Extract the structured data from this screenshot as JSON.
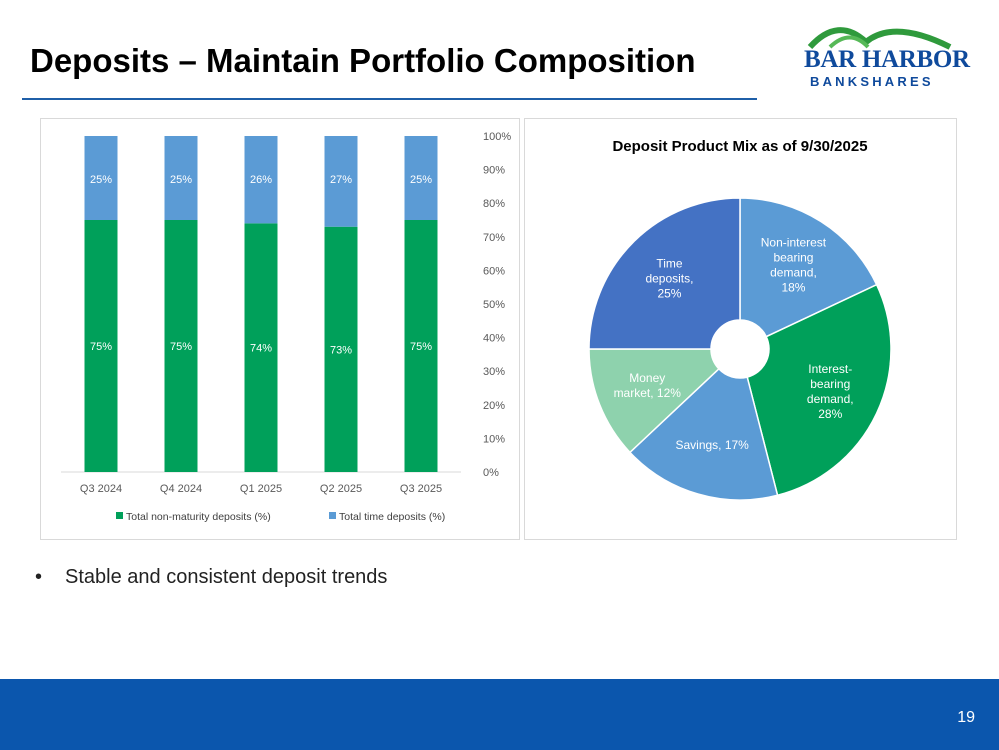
{
  "title": "Deposits – Maintain Portfolio Composition",
  "logo": {
    "line1": "BAR HARBOR",
    "line2": "BANKSHARES"
  },
  "bullet": "Stable and consistent deposit trends",
  "page_number": "19",
  "colors": {
    "green": "#00a05a",
    "blue": "#5b9bd5",
    "darkblue": "#4472c4",
    "lightgreen": "#8ed2ad",
    "footer": "#0b56ad",
    "rule": "#1f5fa8"
  },
  "chart_data": [
    {
      "type": "bar",
      "stacked": true,
      "title": "",
      "categories": [
        "Q3 2024",
        "Q4 2024",
        "Q1 2025",
        "Q2 2025",
        "Q3 2025"
      ],
      "series": [
        {
          "name": "Total non-maturity deposits (%)",
          "color": "#00a05a",
          "values": [
            75,
            75,
            74,
            73,
            75
          ],
          "labels": [
            "75%",
            "75%",
            "74%",
            "73%",
            "75%"
          ]
        },
        {
          "name": "Total time deposits (%)",
          "color": "#5b9bd5",
          "values": [
            25,
            25,
            26,
            27,
            25
          ],
          "labels": [
            "25%",
            "25%",
            "26%",
            "27%",
            "25%"
          ]
        }
      ],
      "ylim": [
        0,
        100
      ],
      "yticks": [
        "0%",
        "10%",
        "20%",
        "30%",
        "40%",
        "50%",
        "60%",
        "70%",
        "80%",
        "90%",
        "100%"
      ],
      "yaxis_side": "right",
      "legend": "bottom"
    },
    {
      "type": "pie",
      "donut": true,
      "title": "Deposit Product Mix as of 9/30/2025",
      "slices": [
        {
          "name": "Non-interest bearing demand",
          "value": 18,
          "color": "#5b9bd5",
          "label_lines": [
            "Non-interest",
            "bearing",
            "demand,",
            "18%"
          ]
        },
        {
          "name": "Interest-bearing demand",
          "value": 28,
          "color": "#00a05a",
          "label_lines": [
            "Interest-",
            "bearing",
            "demand,",
            "28%"
          ]
        },
        {
          "name": "Savings",
          "value": 17,
          "color": "#5b9bd5",
          "label_lines": [
            "Savings, 17%"
          ]
        },
        {
          "name": "Money market",
          "value": 12,
          "color": "#8ed2ad",
          "label_lines": [
            "Money",
            "market, 12%"
          ]
        },
        {
          "name": "Time deposits",
          "value": 25,
          "color": "#4472c4",
          "label_lines": [
            "Time",
            "deposits,",
            "25%"
          ]
        }
      ]
    }
  ]
}
